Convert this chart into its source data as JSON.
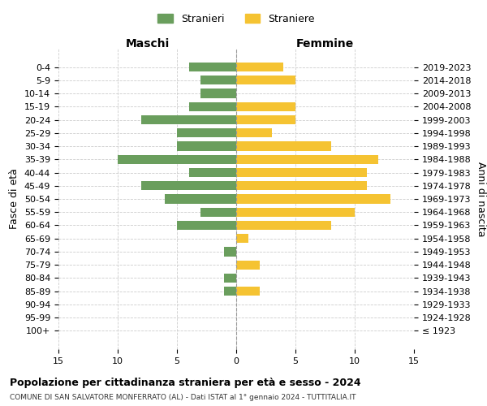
{
  "age_groups": [
    "100+",
    "95-99",
    "90-94",
    "85-89",
    "80-84",
    "75-79",
    "70-74",
    "65-69",
    "60-64",
    "55-59",
    "50-54",
    "45-49",
    "40-44",
    "35-39",
    "30-34",
    "25-29",
    "20-24",
    "15-19",
    "10-14",
    "5-9",
    "0-4"
  ],
  "birth_years": [
    "≤ 1923",
    "1924-1928",
    "1929-1933",
    "1934-1938",
    "1939-1943",
    "1944-1948",
    "1949-1953",
    "1954-1958",
    "1959-1963",
    "1964-1968",
    "1969-1973",
    "1974-1978",
    "1979-1983",
    "1984-1988",
    "1989-1993",
    "1994-1998",
    "1999-2003",
    "2004-2008",
    "2009-2013",
    "2014-2018",
    "2019-2023"
  ],
  "males": [
    0,
    0,
    0,
    1,
    1,
    0,
    1,
    0,
    5,
    3,
    6,
    8,
    4,
    10,
    5,
    5,
    8,
    4,
    3,
    3,
    4
  ],
  "females": [
    0,
    0,
    0,
    2,
    0,
    2,
    0,
    1,
    8,
    10,
    13,
    11,
    11,
    12,
    8,
    3,
    5,
    5,
    0,
    5,
    4
  ],
  "male_color": "#6a9e5d",
  "female_color": "#f5c332",
  "title": "Popolazione per cittadinanza straniera per età e sesso - 2024",
  "subtitle": "COMUNE DI SAN SALVATORE MONFERRATO (AL) - Dati ISTAT al 1° gennaio 2024 - TUTTITALIA.IT",
  "xlabel_left": "Maschi",
  "xlabel_right": "Femmine",
  "ylabel_left": "Fasce di età",
  "ylabel_right": "Anni di nascita",
  "legend_male": "Stranieri",
  "legend_female": "Straniere",
  "xlim": 15,
  "background_color": "#ffffff",
  "grid_color": "#cccccc"
}
